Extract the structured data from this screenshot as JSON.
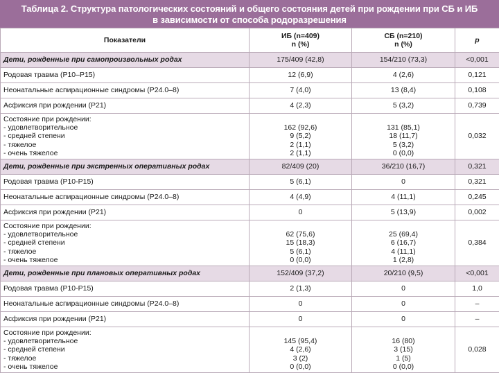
{
  "caption": {
    "line1": "Таблица 2. Структура патологических состояний и общего состояния детей при рождении при СБ и ИБ",
    "line2": "в зависимости от способа родоразрешения"
  },
  "header": {
    "col1": "Показатели",
    "col2_line1": "ИБ (n=409)",
    "col2_line2": "n (%)",
    "col3_line1": "СБ (n=210)",
    "col3_line2": "n (%)",
    "col4": "p"
  },
  "sections": [
    {
      "title": "Дети, рожденные при самопроизвольных родах",
      "ib": "175/409 (42,8)",
      "sb": "154/210 (73,3)",
      "p": "<0,001",
      "rows": [
        {
          "label": "Родовая травма (Р10–Р15)",
          "ib": "12 (6,9)",
          "sb": "4 (2,6)",
          "p": "0,121"
        },
        {
          "label": "Неонатальные аспирационные синдромы (Р24.0–8)",
          "ib": "7 (4,0)",
          "sb": "13 (8,4)",
          "p": "0,108"
        },
        {
          "label": "Асфиксия при рождении (Р21)",
          "ib": "4 (2,3)",
          "sb": "5 (3,2)",
          "p": "0,739"
        }
      ],
      "state": {
        "label": "Состояние при рождении:",
        "items": [
          "- удовлетворительное",
          "- средней степени",
          "- тяжелое",
          "- очень тяжелое"
        ],
        "ib": [
          "162 (92,6)",
          "9 (5,2)",
          "2 (1,1)",
          "2 (1,1)"
        ],
        "sb": [
          "131 (85,1)",
          "18 (11,7)",
          "5 (3,2)",
          "0 (0,0)"
        ],
        "p": "0,032"
      }
    },
    {
      "title": "Дети, рожденные при экстренных оперативных родах",
      "ib": "82/409 (20)",
      "sb": "36/210 (16,7)",
      "p": "0,321",
      "rows": [
        {
          "label": "Родовая травма (Р10-Р15)",
          "ib": "5 (6,1)",
          "sb": "0",
          "p": "0,321"
        },
        {
          "label": "Неонатальные аспирационные синдромы (Р24.0–8)",
          "ib": "4 (4,9)",
          "sb": "4 (11,1)",
          "p": "0,245"
        },
        {
          "label": "Асфиксия при рождении (Р21)",
          "ib": "0",
          "sb": "5 (13,9)",
          "p": "0,002"
        }
      ],
      "state": {
        "label": "Состояние при рождении:",
        "items": [
          "- удовлетворительное",
          "- средней степени",
          "- тяжелое",
          "- очень тяжелое"
        ],
        "ib": [
          "62 (75,6)",
          "15 (18,3)",
          "5 (6,1)",
          "0 (0,0)"
        ],
        "sb": [
          "25 (69,4)",
          "6 (16,7)",
          "4 (11,1)",
          "1 (2,8)"
        ],
        "p": "0,384"
      }
    },
    {
      "title": "Дети, рожденные при плановых оперативных родах",
      "ib": "152/409 (37,2)",
      "sb": "20/210 (9,5)",
      "p": "<0,001",
      "rows": [
        {
          "label": "Родовая травма (Р10-Р15)",
          "ib": "2 (1,3)",
          "sb": "0",
          "p": "1,0"
        },
        {
          "label": "Неонатальные аспирационные синдромы (Р24.0–8)",
          "ib": "0",
          "sb": "0",
          "p": "–"
        },
        {
          "label": "Асфиксия при рождении (Р21)",
          "ib": "0",
          "sb": "0",
          "p": "–"
        }
      ],
      "state": {
        "label": "Состояние при рождении:",
        "items": [
          "- удовлетворительное",
          "- средней степени",
          "- тяжелое",
          "- очень тяжелое"
        ],
        "ib": [
          "145 (95,4)",
          "4 (2,6)",
          "3 (2)",
          "0 (0,0)"
        ],
        "sb": [
          "16 (80)",
          "3 (15)",
          "1 (5)",
          "0 (0,0)"
        ],
        "p": "0,028"
      }
    }
  ]
}
